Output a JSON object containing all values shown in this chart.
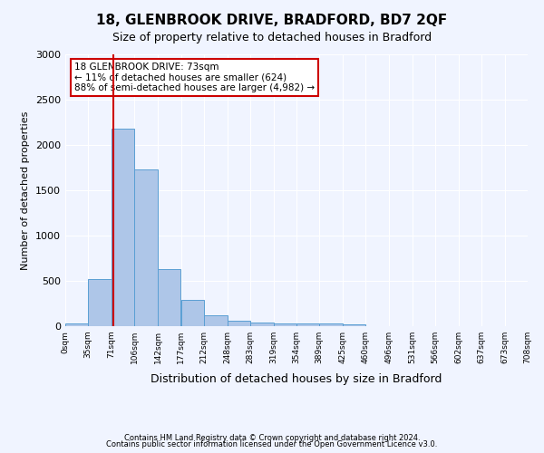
{
  "title": "18, GLENBROOK DRIVE, BRADFORD, BD7 2QF",
  "subtitle": "Size of property relative to detached houses in Bradford",
  "xlabel": "Distribution of detached houses by size in Bradford",
  "ylabel": "Number of detached properties",
  "footnote1": "Contains HM Land Registry data © Crown copyright and database right 2024.",
  "footnote2": "Contains public sector information licensed under the Open Government Licence v3.0.",
  "annotation_title": "18 GLENBROOK DRIVE: 73sqm",
  "annotation_line1": "← 11% of detached houses are smaller (624)",
  "annotation_line2": "88% of semi-detached houses are larger (4,982) →",
  "property_sqm": 73,
  "bin_edges": [
    0,
    35,
    71,
    106,
    142,
    177,
    212,
    248,
    283,
    319,
    354,
    389,
    425,
    460,
    496,
    531,
    566,
    602,
    637,
    673,
    708
  ],
  "bar_heights": [
    30,
    524,
    2185,
    1735,
    635,
    290,
    120,
    65,
    40,
    35,
    35,
    35,
    20,
    5,
    5,
    5,
    5,
    5,
    5,
    5
  ],
  "bar_color": "#aec6e8",
  "bar_edge_color": "#5a9fd4",
  "vline_color": "#cc0000",
  "vline_x": 73,
  "box_color": "#cc0000",
  "ylim": [
    0,
    3000
  ],
  "background_color": "#f0f4ff",
  "grid_color": "#ffffff"
}
